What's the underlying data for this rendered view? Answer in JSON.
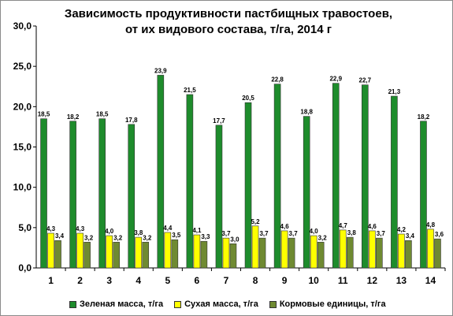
{
  "chart_data": {
    "type": "bar",
    "title_lines": [
      "Зависимость продуктивности пастбищных травостоев,",
      "от их видового состава, т/га, 2014 г"
    ],
    "categories": [
      "1",
      "2",
      "3",
      "4",
      "5",
      "6",
      "7",
      "8",
      "9",
      "10",
      "11",
      "12",
      "13",
      "14"
    ],
    "y_ticks": [
      "0,0",
      "5,0",
      "10,0",
      "15,0",
      "20,0",
      "25,0",
      "30,0"
    ],
    "ylim": [
      0,
      30
    ],
    "grid": false,
    "legend_position": "bottom",
    "series": [
      {
        "name": "Зеленая масса, т/га",
        "color": "#1e8c2c",
        "values": [
          18.5,
          18.2,
          18.5,
          17.8,
          23.9,
          21.5,
          17.7,
          20.5,
          22.8,
          18.8,
          22.9,
          22.7,
          21.3,
          18.2
        ],
        "labels": [
          "18,5",
          "18,2",
          "18,5",
          "17,8",
          "23,9",
          "21,5",
          "17,7",
          "20,5",
          "22,8",
          "18,8",
          "22,9",
          "22,7",
          "21,3",
          "18,2"
        ]
      },
      {
        "name": "Сухая масса, т/га",
        "color": "#ffff00",
        "values": [
          4.3,
          4.3,
          4.0,
          3.8,
          4.4,
          4.1,
          3.7,
          5.2,
          4.6,
          4.0,
          4.7,
          4.6,
          4.2,
          4.8
        ],
        "labels": [
          "4,3",
          "4,3",
          "4,0",
          "3,8",
          "4,4",
          "4,1",
          "3,7",
          "5,2",
          "4,6",
          "4,0",
          "4,7",
          "4,6",
          "4,2",
          "4,8"
        ]
      },
      {
        "name": "Кормовые единицы, т/га",
        "color": "#6f8a32",
        "values": [
          3.4,
          3.2,
          3.2,
          3.2,
          3.5,
          3.3,
          3.0,
          3.7,
          3.7,
          3.2,
          3.8,
          3.7,
          3.4,
          3.6
        ],
        "labels": [
          "3,4",
          "3,2",
          "3,2",
          "3,2",
          "3,5",
          "3,3",
          "3,0",
          "3,7",
          "3,7",
          "3,2",
          "3,8",
          "3,7",
          "3,4",
          "3,6"
        ]
      }
    ]
  }
}
